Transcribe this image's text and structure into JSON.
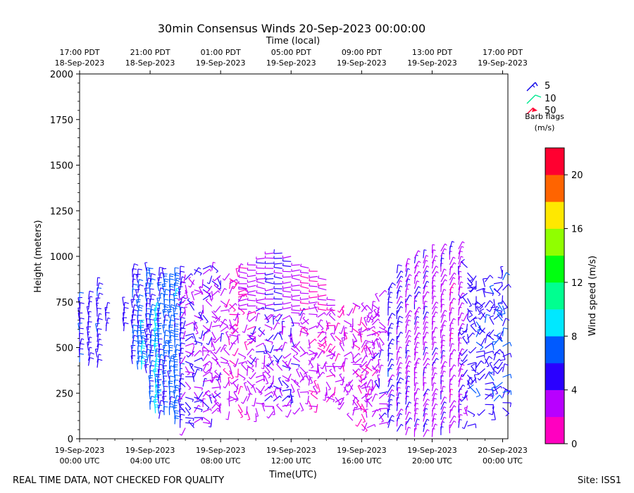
{
  "chart_data": {
    "type": "wind-barb-time-height",
    "title": "30min Consensus Winds 20-Sep-2023 00:00:00",
    "xlabel": "Time(UTC)",
    "x2label": "Time (local)",
    "ylabel": "Height (meters)",
    "ylim": [
      0,
      2000
    ],
    "yticks": [
      0,
      250,
      500,
      750,
      1000,
      1250,
      1500,
      1750,
      2000
    ],
    "xlim_hours": [
      0,
      24.3
    ],
    "bottom_ticks": [
      {
        "hour": 0,
        "line1": "19-Sep-2023",
        "line2": "00:00 UTC"
      },
      {
        "hour": 4,
        "line1": "19-Sep-2023",
        "line2": "04:00 UTC"
      },
      {
        "hour": 8,
        "line1": "19-Sep-2023",
        "line2": "08:00 UTC"
      },
      {
        "hour": 12,
        "line1": "19-Sep-2023",
        "line2": "12:00 UTC"
      },
      {
        "hour": 16,
        "line1": "19-Sep-2023",
        "line2": "16:00 UTC"
      },
      {
        "hour": 20,
        "line1": "19-Sep-2023",
        "line2": "20:00 UTC"
      },
      {
        "hour": 24,
        "line1": "20-Sep-2023",
        "line2": "00:00 UTC"
      }
    ],
    "top_ticks": [
      {
        "hour": 0,
        "line1": "17:00 PDT",
        "line2": "18-Sep-2023"
      },
      {
        "hour": 4,
        "line1": "21:00 PDT",
        "line2": "18-Sep-2023"
      },
      {
        "hour": 8,
        "line1": "01:00 PDT",
        "line2": "19-Sep-2023"
      },
      {
        "hour": 12,
        "line1": "05:00 PDT",
        "line2": "19-Sep-2023"
      },
      {
        "hour": 16,
        "line1": "09:00 PDT",
        "line2": "19-Sep-2023"
      },
      {
        "hour": 20,
        "line1": "13:00 PDT",
        "line2": "19-Sep-2023"
      },
      {
        "hour": 24,
        "line1": "17:00 PDT",
        "line2": "19-Sep-2023"
      }
    ],
    "barb_legend": {
      "items": [
        {
          "label": "5",
          "color": "#0a00e8"
        },
        {
          "label": "10",
          "color": "#00e890"
        },
        {
          "label": "50",
          "color": "#ff0030"
        }
      ],
      "caption_line1": "Barb flags",
      "caption_line2": "(m/s)"
    },
    "colorbar": {
      "label": "Wind speed (m/s)",
      "min": 0,
      "max": 22,
      "step": 2,
      "tick_values": [
        0,
        4,
        8,
        12,
        16,
        20
      ],
      "colors": [
        "#ff00c0",
        "#b800ff",
        "#2a00ff",
        "#005aff",
        "#00e8ff",
        "#00ff90",
        "#00ff10",
        "#90ff00",
        "#ffe800",
        "#ff6400",
        "#ff0030"
      ]
    },
    "columns": [
      {
        "t": 0.0,
        "z": [
          420,
          760
        ],
        "speed": 5.5
      },
      {
        "t": 0.5,
        "z": [
          400,
          790
        ],
        "speed": 5.0
      },
      {
        "t": 1.0,
        "z": [
          390,
          840
        ],
        "speed": 5.2
      },
      {
        "t": 1.5,
        "z": [
          590,
          720
        ],
        "speed": 4.8
      },
      {
        "t": 2.5,
        "z": [
          590,
          750
        ],
        "speed": 5.0
      },
      {
        "t": 3.0,
        "z": [
          410,
          920
        ],
        "speed": 5.8
      },
      {
        "t": 3.3,
        "z": [
          380,
          900
        ],
        "speed": 6.5
      },
      {
        "t": 3.5,
        "z": [
          380,
          620
        ],
        "speed": 8.5
      },
      {
        "t": 3.8,
        "z": [
          360,
          930
        ],
        "speed": 6.0
      },
      {
        "t": 4.0,
        "z": [
          160,
          910
        ],
        "speed": 6.5
      },
      {
        "t": 4.3,
        "z": [
          140,
          700
        ],
        "speed": 8.6
      },
      {
        "t": 4.5,
        "z": [
          110,
          920
        ],
        "speed": 6.0
      },
      {
        "t": 4.8,
        "z": [
          130,
          890
        ],
        "speed": 6.5
      },
      {
        "t": 5.1,
        "z": [
          130,
          880
        ],
        "speed": 6.8
      },
      {
        "t": 5.4,
        "z": [
          80,
          900
        ],
        "speed": 7.0
      },
      {
        "t": 5.7,
        "z": [
          60,
          910
        ],
        "speed": 5.0
      },
      {
        "t": 6.0,
        "z": [
          60,
          920
        ],
        "speed": 4.0
      },
      {
        "t": 6.5,
        "z": [
          60,
          930
        ],
        "speed": 3.8
      },
      {
        "t": 7.0,
        "z": [
          90,
          940
        ],
        "speed": 3.5
      },
      {
        "t": 7.5,
        "z": [
          110,
          950
        ],
        "speed": 3.4
      },
      {
        "t": 8.0,
        "z": [
          140,
          920
        ],
        "speed": 3.2
      },
      {
        "t": 8.5,
        "z": [
          150,
          930
        ],
        "speed": 2.5
      },
      {
        "t": 9.0,
        "z": [
          160,
          930
        ],
        "speed": 2.2
      },
      {
        "t": 9.5,
        "z": [
          150,
          940
        ],
        "speed": 2.6
      },
      {
        "t": 10.0,
        "z": [
          140,
          960
        ],
        "speed": 3.2
      },
      {
        "t": 10.5,
        "z": [
          150,
          990
        ],
        "speed": 3.6
      },
      {
        "t": 11.0,
        "z": [
          150,
          1040
        ],
        "speed": 4.2
      },
      {
        "t": 11.5,
        "z": [
          150,
          1040
        ],
        "speed": 4.0
      },
      {
        "t": 12.0,
        "z": [
          160,
          1000
        ],
        "speed": 3.5
      },
      {
        "t": 12.5,
        "z": [
          170,
          960
        ],
        "speed": 3.0
      },
      {
        "t": 13.0,
        "z": [
          180,
          950
        ],
        "speed": 2.6
      },
      {
        "t": 13.5,
        "z": [
          190,
          920
        ],
        "speed": 2.4
      },
      {
        "t": 14.0,
        "z": [
          200,
          880
        ],
        "speed": 2.2
      },
      {
        "t": 14.5,
        "z": [
          200,
          760
        ],
        "speed": 2.4
      },
      {
        "t": 15.0,
        "z": [
          200,
          750
        ],
        "speed": 2.5
      },
      {
        "t": 15.5,
        "z": [
          100,
          750
        ],
        "speed": 2.6
      },
      {
        "t": 16.0,
        "z": [
          80,
          720
        ],
        "speed": 2.3
      },
      {
        "t": 16.3,
        "z": [
          60,
          740
        ],
        "speed": 2.6
      },
      {
        "t": 16.6,
        "z": [
          120,
          760
        ],
        "speed": 2.8
      },
      {
        "t": 17.0,
        "z": [
          80,
          780
        ],
        "speed": 3.5
      },
      {
        "t": 17.5,
        "z": [
          60,
          840
        ],
        "speed": 5.0
      },
      {
        "t": 18.0,
        "z": [
          40,
          920
        ],
        "speed": 4.5
      },
      {
        "t": 18.5,
        "z": [
          20,
          960
        ],
        "speed": 3.6
      },
      {
        "t": 19.0,
        "z": [
          10,
          990
        ],
        "speed": 3.2
      },
      {
        "t": 19.5,
        "z": [
          10,
          1010
        ],
        "speed": 3.4
      },
      {
        "t": 20.0,
        "z": [
          10,
          1030
        ],
        "speed": 3.0
      },
      {
        "t": 20.5,
        "z": [
          20,
          1040
        ],
        "speed": 3.2
      },
      {
        "t": 21.0,
        "z": [
          30,
          1040
        ],
        "speed": 3.0
      },
      {
        "t": 21.5,
        "z": [
          60,
          1040
        ],
        "speed": 3.4
      },
      {
        "t": 22.0,
        "z": [
          70,
          940
        ],
        "speed": 4.8
      },
      {
        "t": 22.5,
        "z": [
          250,
          900
        ],
        "speed": 5.5
      },
      {
        "t": 23.0,
        "z": [
          160,
          880
        ],
        "speed": 5.0
      },
      {
        "t": 23.5,
        "z": [
          150,
          860
        ],
        "speed": 5.5
      },
      {
        "t": 24.0,
        "z": [
          170,
          950
        ],
        "speed": 5.6
      }
    ]
  },
  "footer": {
    "left": "REAL TIME DATA, NOT CHECKED FOR QUALITY",
    "right": "Site: ISS1"
  }
}
